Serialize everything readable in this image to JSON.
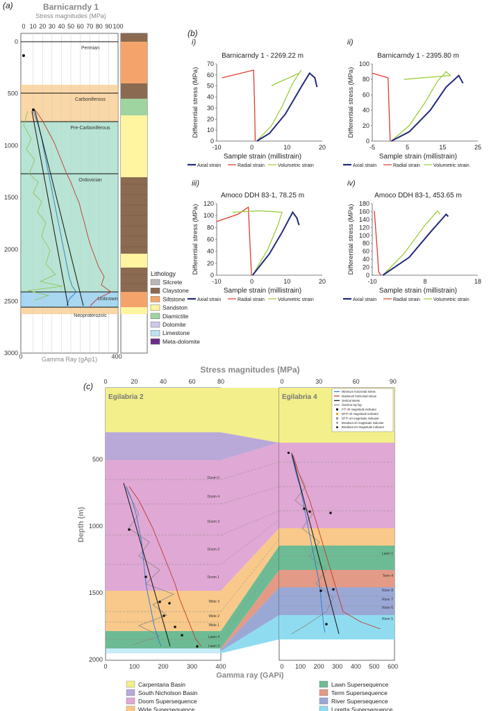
{
  "figure": {
    "panel_labels": {
      "a": "(a)",
      "b": "(b)",
      "c": "(c)"
    },
    "sub_labels": [
      "i)",
      "ii)",
      "iii)",
      "iv)"
    ]
  },
  "panel_a": {
    "well_title": "Barnicarndy 1",
    "top_axis_label": "Stress magnitudes (MPa)",
    "top_ticks": [
      "0",
      "10",
      "20",
      "30",
      "40",
      "50",
      "60",
      "70",
      "80",
      "90",
      "100"
    ],
    "depth_ticks": [
      "0",
      "500",
      "1000",
      "1500",
      "2000",
      "2500",
      "3000"
    ],
    "bottom_ticks": [
      "0",
      "400"
    ],
    "bottom_axis_label": "Gamma Ray (gAp1)",
    "periods": [
      "Permian",
      "Carboniferous",
      "Pre-Carboniferous",
      "Ordovician",
      "Unknown",
      "Neoproterozoic"
    ],
    "lithology_title": "Lithology",
    "lithology": [
      {
        "label": "Silcrete",
        "color": "#b8b8b8"
      },
      {
        "label": "Claystone",
        "color": "#8a6a50"
      },
      {
        "label": "Siltstone",
        "color": "#f4a46a"
      },
      {
        "label": "Sandston",
        "color": "#fff4a0"
      },
      {
        "label": "Diamictite",
        "color": "#9fd3a0"
      },
      {
        "label": "Dolomite",
        "color": "#cfc7ea"
      },
      {
        "label": "Limestone",
        "color": "#bfe0f0"
      },
      {
        "label": "Meta-dolomite",
        "color": "#6a2c8a"
      }
    ]
  },
  "panel_b": {
    "legend": [
      "Axial strain",
      "Radial strain",
      "Volumetric strain"
    ],
    "colors": {
      "axial": "#1f2a7a",
      "radial": "#e03a2a",
      "volumetric": "#9acd3a"
    },
    "plots": [
      {
        "title": "Barnicarndy 1 - 2269.22 m",
        "ylabel": "Differential stress (MPa)",
        "xlabel": "Sample strain (millistrain)",
        "yticks": [
          "0",
          "10",
          "20",
          "30",
          "40",
          "50",
          "60",
          "70"
        ],
        "xticks": [
          "-10",
          "0",
          "10",
          "20"
        ]
      },
      {
        "title": "Barnicarndy 1 - 2395.80 m",
        "ylabel": "Differential stress (MPa)",
        "xlabel": "Sample strain (millistrain)",
        "yticks": [
          "0",
          "20",
          "40",
          "60",
          "80",
          "100"
        ],
        "xticks": [
          "-5",
          "5",
          "15",
          "25"
        ]
      },
      {
        "title": "Amoco DDH 83-1, 78.25 m",
        "ylabel": "Differential stress (MPa)",
        "xlabel": "Sample strain (millistrain)",
        "yticks": [
          "0",
          "20",
          "40",
          "60",
          "80",
          "100",
          "120"
        ],
        "xticks": [
          "-10",
          "0",
          "10",
          "20"
        ]
      },
      {
        "title": "Amoco DDH 83-1, 453.65 m",
        "ylabel": "Differential stress (MPa)",
        "xlabel": "Sample strain (millistrain)",
        "yticks": [
          "0",
          "20",
          "40",
          "60",
          "80",
          "100",
          "120",
          "140",
          "160",
          "180"
        ],
        "xticks": [
          "-10",
          "8",
          "18"
        ]
      }
    ]
  },
  "panel_c": {
    "top_axis_label": "Stress magnitudes (MPa)",
    "left_top_ticks": [
      "0",
      "20",
      "40",
      "60",
      "80"
    ],
    "right_top_ticks": [
      "0",
      "30",
      "60",
      "90"
    ],
    "ylabel": "Depth (m)",
    "depth_ticks": [
      "500",
      "1000",
      "1500",
      "2000"
    ],
    "left_bottom_ticks": [
      "0",
      "100",
      "200",
      "300",
      "400"
    ],
    "right_bottom_ticks": [
      "0",
      "100",
      "200",
      "300",
      "400",
      "500",
      "600"
    ],
    "bottom_axis_label": "Gamma ray (GAPi)",
    "well_left": "Egilabria 2",
    "well_right": "Egilabria 4",
    "left_units": [
      "Doom 5",
      "Doom 4",
      "Doom 3",
      "Doom 2",
      "Doom 1",
      "Wide 3",
      "Wide 2",
      "Wide 1",
      "Lawn 4",
      "Lawn 3"
    ],
    "right_units": [
      "Lawn 1",
      "Term 4",
      "River 8",
      "River 7",
      "River 6",
      "River 5"
    ],
    "inset_legend": [
      "Minimum horizontal stress",
      "Maximum horizontal stress",
      "Vertical stress",
      "Gamma ray log",
      "FIT σh magnitude indicator",
      "DFIT σh magnitude indicator",
      "DFIT σH magnitude indicator",
      "Breakout σh magnitude indicator",
      "Breakout σH magnitude indicator"
    ],
    "basin_legend": [
      {
        "label": "Carpentaria Basin",
        "color": "#f3ef8a"
      },
      {
        "label": "South Nicholson Basin",
        "color": "#b9a9d8"
      },
      {
        "label": "Doom Supersequence",
        "color": "#e0a8d4"
      },
      {
        "label": "Wide Supersequence",
        "color": "#f8c98a"
      },
      {
        "label": "Lawn Supersequence",
        "color": "#6dbb94"
      },
      {
        "label": "Term Supersequence",
        "color": "#e39a86"
      },
      {
        "label": "River Supersequence",
        "color": "#9aa8d6"
      },
      {
        "label": "Loretta Supersequence",
        "color": "#8fdcf0"
      }
    ]
  }
}
